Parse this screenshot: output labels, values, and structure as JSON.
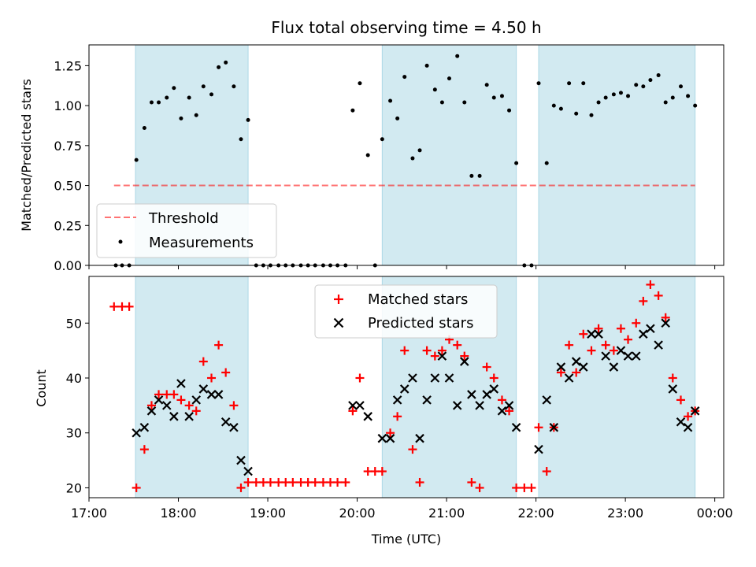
{
  "title": "Flux total observing time = 4.50 h",
  "colors": {
    "band": "#add8e6",
    "threshold": "#ff0000",
    "measurement": "#000000",
    "matched": "#ff0000",
    "predicted": "#000000"
  },
  "x_axis": {
    "label": "Time (UTC)",
    "range_hours": [
      17.0,
      24.1
    ],
    "ticks": [
      {
        "hour": 17,
        "label": "17:00"
      },
      {
        "hour": 18,
        "label": "18:00"
      },
      {
        "hour": 19,
        "label": "19:00"
      },
      {
        "hour": 20,
        "label": "20:00"
      },
      {
        "hour": 21,
        "label": "21:00"
      },
      {
        "hour": 22,
        "label": "22:00"
      },
      {
        "hour": 23,
        "label": "23:00"
      },
      {
        "hour": 24,
        "label": "00:00"
      }
    ]
  },
  "chart_data": [
    {
      "type": "scatter",
      "name": "top-panel",
      "title": "Flux total observing time = 4.50 h",
      "ylabel": "Matched/Predicted stars",
      "ylim": [
        0,
        1.38
      ],
      "yticks": [
        {
          "v": 0.0,
          "label": "0.00"
        },
        {
          "v": 0.25,
          "label": "0.25"
        },
        {
          "v": 0.5,
          "label": "0.50"
        },
        {
          "v": 0.75,
          "label": "0.75"
        },
        {
          "v": 1.0,
          "label": "1.00"
        },
        {
          "v": 1.25,
          "label": "1.25"
        }
      ],
      "bands": [
        [
          17.52,
          18.78
        ],
        [
          20.28,
          21.78
        ],
        [
          22.03,
          23.78
        ]
      ],
      "threshold": {
        "name": "Threshold",
        "value": 0.5,
        "x_range": [
          17.28,
          23.78
        ]
      },
      "legend": {
        "position": "lower-left",
        "entries": [
          "Threshold",
          "Measurements"
        ]
      },
      "series": [
        {
          "name": "Measurements",
          "points": [
            [
              17.3,
              0
            ],
            [
              17.37,
              0
            ],
            [
              17.45,
              0
            ],
            [
              17.53,
              0.66
            ],
            [
              17.62,
              0.86
            ],
            [
              17.7,
              1.02
            ],
            [
              17.78,
              1.02
            ],
            [
              17.87,
              1.05
            ],
            [
              17.95,
              1.11
            ],
            [
              18.03,
              0.92
            ],
            [
              18.12,
              1.05
            ],
            [
              18.2,
              0.94
            ],
            [
              18.28,
              1.12
            ],
            [
              18.37,
              1.07
            ],
            [
              18.45,
              1.24
            ],
            [
              18.53,
              1.27
            ],
            [
              18.62,
              1.12
            ],
            [
              18.7,
              0.79
            ],
            [
              18.78,
              0.91
            ],
            [
              18.87,
              0
            ],
            [
              18.95,
              0
            ],
            [
              19.03,
              0
            ],
            [
              19.12,
              0
            ],
            [
              19.2,
              0
            ],
            [
              19.28,
              0
            ],
            [
              19.37,
              0
            ],
            [
              19.45,
              0
            ],
            [
              19.53,
              0
            ],
            [
              19.62,
              0
            ],
            [
              19.7,
              0
            ],
            [
              19.78,
              0
            ],
            [
              19.87,
              0
            ],
            [
              19.95,
              0.97
            ],
            [
              20.03,
              1.14
            ],
            [
              20.12,
              0.69
            ],
            [
              20.2,
              0
            ],
            [
              20.28,
              0.79
            ],
            [
              20.37,
              1.03
            ],
            [
              20.45,
              0.92
            ],
            [
              20.53,
              1.18
            ],
            [
              20.62,
              0.67
            ],
            [
              20.7,
              0.72
            ],
            [
              20.78,
              1.25
            ],
            [
              20.87,
              1.1
            ],
            [
              20.95,
              1.02
            ],
            [
              21.03,
              1.17
            ],
            [
              21.12,
              1.31
            ],
            [
              21.2,
              1.02
            ],
            [
              21.28,
              0.56
            ],
            [
              21.37,
              0.56
            ],
            [
              21.45,
              1.13
            ],
            [
              21.53,
              1.05
            ],
            [
              21.62,
              1.06
            ],
            [
              21.7,
              0.97
            ],
            [
              21.78,
              0.64
            ],
            [
              21.87,
              0
            ],
            [
              21.95,
              0
            ],
            [
              22.03,
              1.14
            ],
            [
              22.12,
              0.64
            ],
            [
              22.2,
              1.0
            ],
            [
              22.28,
              0.98
            ],
            [
              22.37,
              1.14
            ],
            [
              22.45,
              0.95
            ],
            [
              22.53,
              1.14
            ],
            [
              22.62,
              0.94
            ],
            [
              22.7,
              1.02
            ],
            [
              22.78,
              1.05
            ],
            [
              22.87,
              1.07
            ],
            [
              22.95,
              1.08
            ],
            [
              23.03,
              1.06
            ],
            [
              23.12,
              1.13
            ],
            [
              23.2,
              1.12
            ],
            [
              23.28,
              1.16
            ],
            [
              23.37,
              1.19
            ],
            [
              23.45,
              1.02
            ],
            [
              23.53,
              1.05
            ],
            [
              23.62,
              1.12
            ],
            [
              23.7,
              1.06
            ],
            [
              23.78,
              1.0
            ]
          ]
        }
      ]
    },
    {
      "type": "scatter",
      "name": "bottom-panel",
      "xlabel": "Time (UTC)",
      "ylabel": "Count",
      "ylim": [
        18.2,
        58.5
      ],
      "yticks": [
        {
          "v": 20,
          "label": "20"
        },
        {
          "v": 30,
          "label": "30"
        },
        {
          "v": 40,
          "label": "40"
        },
        {
          "v": 50,
          "label": "50"
        }
      ],
      "bands": [
        [
          17.52,
          18.78
        ],
        [
          20.28,
          21.78
        ],
        [
          22.03,
          23.78
        ]
      ],
      "legend": {
        "position": "upper-center",
        "entries": [
          "Matched stars",
          "Predicted stars"
        ]
      },
      "series": [
        {
          "name": "Matched stars",
          "marker": "plus",
          "points": [
            [
              17.28,
              53
            ],
            [
              17.37,
              53
            ],
            [
              17.45,
              53
            ],
            [
              17.53,
              20
            ],
            [
              17.62,
              27
            ],
            [
              17.7,
              35
            ],
            [
              17.78,
              37
            ],
            [
              17.87,
              37
            ],
            [
              17.95,
              37
            ],
            [
              18.03,
              36
            ],
            [
              18.12,
              35
            ],
            [
              18.2,
              34
            ],
            [
              18.28,
              43
            ],
            [
              18.37,
              40
            ],
            [
              18.45,
              46
            ],
            [
              18.53,
              41
            ],
            [
              18.62,
              35
            ],
            [
              18.7,
              20
            ],
            [
              18.78,
              21
            ],
            [
              18.87,
              21
            ],
            [
              18.95,
              21
            ],
            [
              19.03,
              21
            ],
            [
              19.12,
              21
            ],
            [
              19.2,
              21
            ],
            [
              19.28,
              21
            ],
            [
              19.37,
              21
            ],
            [
              19.45,
              21
            ],
            [
              19.53,
              21
            ],
            [
              19.62,
              21
            ],
            [
              19.7,
              21
            ],
            [
              19.78,
              21
            ],
            [
              19.87,
              21
            ],
            [
              19.95,
              34
            ],
            [
              20.03,
              40
            ],
            [
              20.12,
              23
            ],
            [
              20.2,
              23
            ],
            [
              20.28,
              23
            ],
            [
              20.37,
              30
            ],
            [
              20.45,
              33
            ],
            [
              20.53,
              45
            ],
            [
              20.62,
              27
            ],
            [
              20.7,
              21
            ],
            [
              20.78,
              45
            ],
            [
              20.87,
              44
            ],
            [
              20.95,
              45
            ],
            [
              21.03,
              47
            ],
            [
              21.12,
              46
            ],
            [
              21.2,
              44
            ],
            [
              21.28,
              21
            ],
            [
              21.37,
              20
            ],
            [
              21.45,
              42
            ],
            [
              21.53,
              40
            ],
            [
              21.62,
              36
            ],
            [
              21.7,
              34
            ],
            [
              21.78,
              20
            ],
            [
              21.87,
              20
            ],
            [
              21.95,
              20
            ],
            [
              22.03,
              31
            ],
            [
              22.12,
              23
            ],
            [
              22.2,
              31
            ],
            [
              22.28,
              41
            ],
            [
              22.37,
              46
            ],
            [
              22.45,
              41
            ],
            [
              22.53,
              48
            ],
            [
              22.62,
              45
            ],
            [
              22.7,
              49
            ],
            [
              22.78,
              46
            ],
            [
              22.87,
              45
            ],
            [
              22.95,
              49
            ],
            [
              23.03,
              47
            ],
            [
              23.12,
              50
            ],
            [
              23.2,
              54
            ],
            [
              23.28,
              57
            ],
            [
              23.37,
              55
            ],
            [
              23.45,
              51
            ],
            [
              23.53,
              40
            ],
            [
              23.62,
              36
            ],
            [
              23.7,
              33
            ],
            [
              23.78,
              34
            ]
          ]
        },
        {
          "name": "Predicted stars",
          "marker": "x",
          "points": [
            [
              17.53,
              30
            ],
            [
              17.62,
              31
            ],
            [
              17.7,
              34
            ],
            [
              17.78,
              36
            ],
            [
              17.87,
              35
            ],
            [
              17.95,
              33
            ],
            [
              18.03,
              39
            ],
            [
              18.12,
              33
            ],
            [
              18.2,
              36
            ],
            [
              18.28,
              38
            ],
            [
              18.37,
              37
            ],
            [
              18.45,
              37
            ],
            [
              18.53,
              32
            ],
            [
              18.62,
              31
            ],
            [
              18.7,
              25
            ],
            [
              18.78,
              23
            ],
            [
              19.95,
              35
            ],
            [
              20.03,
              35
            ],
            [
              20.12,
              33
            ],
            [
              20.28,
              29
            ],
            [
              20.37,
              29
            ],
            [
              20.45,
              36
            ],
            [
              20.53,
              38
            ],
            [
              20.62,
              40
            ],
            [
              20.7,
              29
            ],
            [
              20.78,
              36
            ],
            [
              20.87,
              40
            ],
            [
              20.95,
              44
            ],
            [
              21.03,
              40
            ],
            [
              21.12,
              35
            ],
            [
              21.2,
              43
            ],
            [
              21.28,
              37
            ],
            [
              21.37,
              35
            ],
            [
              21.45,
              37
            ],
            [
              21.53,
              38
            ],
            [
              21.62,
              34
            ],
            [
              21.7,
              35
            ],
            [
              21.78,
              31
            ],
            [
              22.03,
              27
            ],
            [
              22.12,
              36
            ],
            [
              22.2,
              31
            ],
            [
              22.28,
              42
            ],
            [
              22.37,
              40
            ],
            [
              22.45,
              43
            ],
            [
              22.53,
              42
            ],
            [
              22.62,
              48
            ],
            [
              22.7,
              48
            ],
            [
              22.78,
              44
            ],
            [
              22.87,
              42
            ],
            [
              22.95,
              45
            ],
            [
              23.03,
              44
            ],
            [
              23.12,
              44
            ],
            [
              23.2,
              48
            ],
            [
              23.28,
              49
            ],
            [
              23.37,
              46
            ],
            [
              23.45,
              50
            ],
            [
              23.53,
              38
            ],
            [
              23.62,
              32
            ],
            [
              23.7,
              31
            ],
            [
              23.78,
              34
            ]
          ]
        }
      ]
    }
  ]
}
